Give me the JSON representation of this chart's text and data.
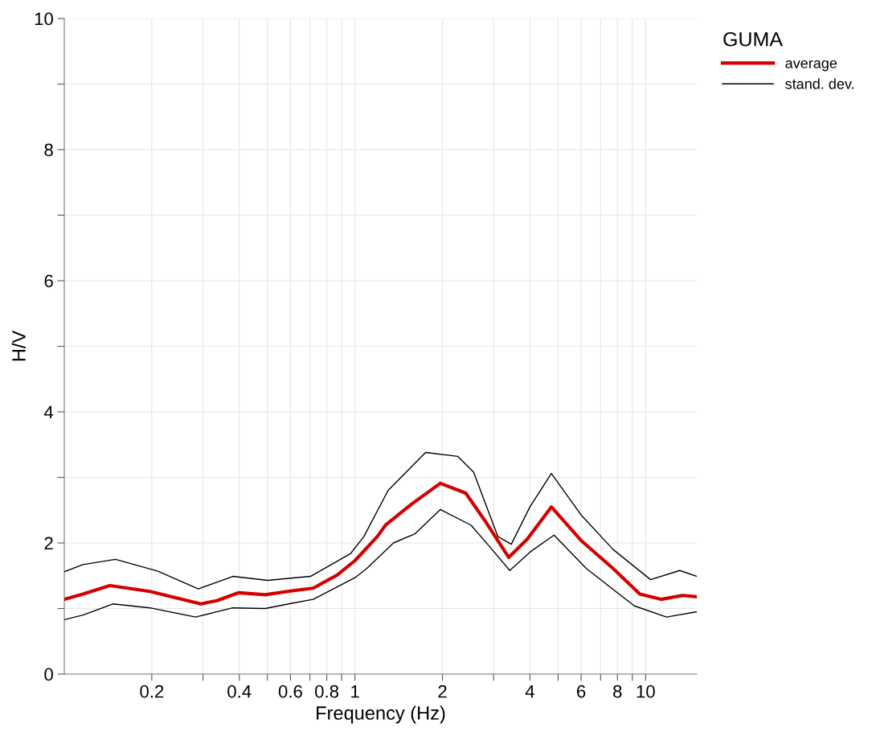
{
  "chart_data": {
    "type": "line",
    "xlabel": "Frequency (Hz)",
    "ylabel": "H/V",
    "legend_title": "GUMA",
    "log": "x",
    "grid": true,
    "legend": "top right",
    "marker": "none",
    "line_style": "solid",
    "xlim": [
      0.1,
      15
    ],
    "xticks": [
      0.2,
      {
        "value": 0.3,
        "label": null
      },
      0.4,
      {
        "value": 0.5,
        "label": null
      },
      0.6,
      {
        "value": 0.7,
        "label": null
      },
      0.8,
      {
        "value": 0.9,
        "label": null
      },
      1,
      2,
      {
        "value": 3,
        "label": null
      },
      4,
      {
        "value": 5,
        "label": null
      },
      6,
      {
        "value": 7,
        "label": null
      },
      8,
      {
        "value": 9,
        "label": null
      },
      10
    ],
    "ylim": [
      0,
      10
    ],
    "yticks": [
      0,
      {
        "value": 1,
        "label": null
      },
      2,
      {
        "value": 3,
        "label": null
      },
      4,
      {
        "value": 5,
        "label": null
      },
      6,
      {
        "value": 7,
        "label": null
      },
      8,
      {
        "value": 9,
        "label": null
      },
      10
    ],
    "series": [
      {
        "name": "average",
        "color": "#d40000",
        "x": [
          0.1,
          0.116,
          0.1435,
          0.197,
          0.244,
          0.295,
          0.335,
          0.397,
          0.491,
          0.607,
          0.718,
          0.869,
          1.0,
          1.195,
          1.273,
          1.574,
          1.966,
          2.405,
          2.79,
          3.38,
          3.92,
          4.74,
          5.99,
          7.73,
          9.55,
          11.3,
          13.4,
          15
        ],
        "values": [
          1.14,
          1.22,
          1.35,
          1.26,
          1.16,
          1.07,
          1.12,
          1.24,
          1.21,
          1.27,
          1.31,
          1.51,
          1.73,
          2.1,
          2.27,
          2.6,
          2.91,
          2.76,
          2.35,
          1.78,
          2.06,
          2.55,
          2.04,
          1.61,
          1.22,
          1.14,
          1.2,
          1.18
        ]
      },
      {
        "name": "stand. dev.",
        "color": "#000000",
        "x": [
          0.1,
          0.116,
          0.15,
          0.21,
          0.289,
          0.38,
          0.501,
          0.703,
          0.967,
          1.074,
          1.3,
          1.75,
          2.26,
          2.56,
          3.1,
          3.45,
          4.0,
          4.74,
          5.99,
          7.73,
          10.4,
          13.1,
          15
        ],
        "values": [
          1.56,
          1.67,
          1.75,
          1.57,
          1.3,
          1.49,
          1.43,
          1.49,
          1.84,
          2.1,
          2.8,
          3.38,
          3.32,
          3.08,
          2.1,
          1.98,
          2.55,
          3.06,
          2.43,
          1.9,
          1.44,
          1.58,
          1.49
        ]
      },
      {
        "color": "#000000",
        "x": [
          0.1,
          0.116,
          0.147,
          0.197,
          0.283,
          0.38,
          0.491,
          0.607,
          0.718,
          0.869,
          1.0,
          1.098,
          1.357,
          1.61,
          1.966,
          2.51,
          2.91,
          3.41,
          4.0,
          4.84,
          6.25,
          9.15,
          11.8,
          15
        ],
        "values": [
          0.83,
          0.9,
          1.07,
          1.01,
          0.87,
          1.01,
          1.0,
          1.08,
          1.14,
          1.33,
          1.47,
          1.61,
          2.0,
          2.14,
          2.51,
          2.27,
          1.94,
          1.58,
          1.86,
          2.12,
          1.61,
          1.04,
          0.87,
          0.95
        ]
      }
    ]
  }
}
